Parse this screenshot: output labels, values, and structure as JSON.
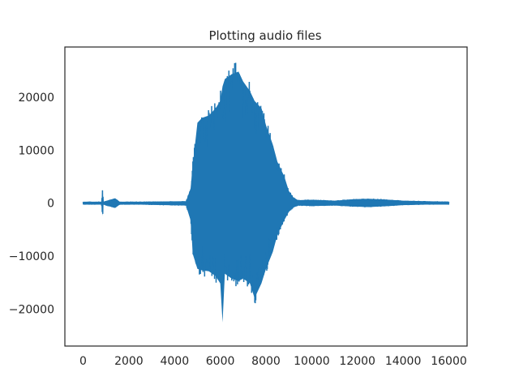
{
  "chart_data": {
    "type": "line",
    "title": "Plotting audio files",
    "xlabel": "",
    "ylabel": "",
    "xlim": [
      -800,
      16800
    ],
    "ylim": [
      -27000,
      29500
    ],
    "x_ticks": [
      0,
      2000,
      4000,
      6000,
      8000,
      10000,
      12000,
      14000,
      16000
    ],
    "x_tick_labels": [
      "0",
      "2000",
      "4000",
      "6000",
      "8000",
      "10000",
      "12000",
      "14000",
      "16000"
    ],
    "y_ticks": [
      -20000,
      -10000,
      0,
      10000,
      20000
    ],
    "y_tick_labels": [
      "−20000",
      "−10000",
      "0",
      "10000",
      "20000"
    ],
    "grid": false,
    "color": "#1f77b4",
    "series": [
      {
        "x": [
          0,
          800,
          850,
          880,
          1400,
          1600,
          2500,
          4500,
          4700,
          4800,
          5000,
          5200,
          5500,
          5800,
          6000,
          6100,
          6200,
          6500,
          6800,
          7000,
          7300,
          7500,
          7800,
          8000,
          8300,
          8500,
          8800,
          9000,
          9200,
          9400,
          10000,
          11000,
          11800,
          12500,
          13400,
          14000,
          15000,
          16000
        ],
        "upper": [
          300,
          300,
          2800,
          300,
          1000,
          300,
          300,
          400,
          3000,
          8000,
          16500,
          17500,
          18000,
          19500,
          21000,
          24000,
          25500,
          26500,
          27000,
          25000,
          23000,
          21000,
          19500,
          16000,
          12000,
          8500,
          5500,
          2500,
          1200,
          600,
          700,
          500,
          800,
          900,
          700,
          500,
          400,
          300
        ],
        "lower": [
          -300,
          -300,
          -2600,
          -300,
          -1000,
          -300,
          -300,
          -500,
          -3500,
          -10500,
          -13500,
          -13800,
          -14000,
          -15000,
          -16500,
          -24500,
          -14500,
          -15500,
          -16000,
          -15500,
          -16500,
          -19500,
          -16500,
          -13500,
          -10000,
          -6500,
          -3500,
          -1800,
          -900,
          -500,
          -600,
          -500,
          -700,
          -800,
          -600,
          -400,
          -300,
          -300
        ]
      }
    ]
  }
}
